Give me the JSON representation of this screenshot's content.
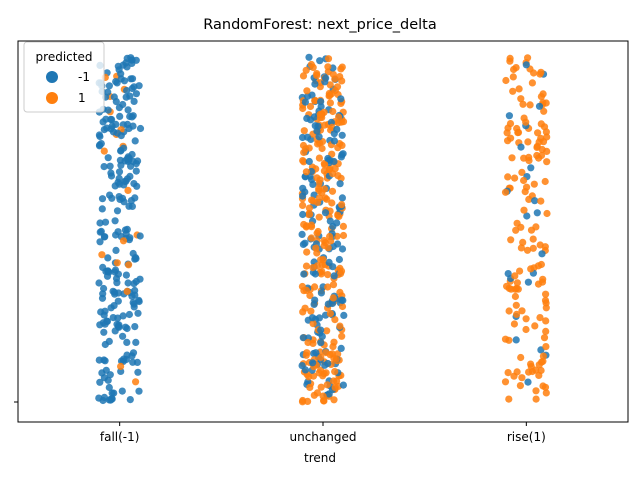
{
  "chart_data": {
    "type": "scatter",
    "title": "RandomForest: next_price_delta",
    "xlabel": "trend",
    "ylabel": "",
    "categories": [
      "fall(-1)",
      "unchanged",
      "rise(1)"
    ],
    "y_tick_labels": [
      ""
    ],
    "legend": {
      "title": "predicted",
      "placement": "top-left",
      "entries": [
        {
          "label": "-1",
          "color": "#1f77b4"
        },
        {
          "label": "1",
          "color": "#ff7f0e"
        }
      ]
    },
    "jitter": {
      "n_points_per_category": [
        260,
        420,
        170
      ],
      "share_predicted_1": [
        0.07,
        0.6,
        0.9
      ]
    },
    "y_range": [
      0,
      1
    ]
  }
}
